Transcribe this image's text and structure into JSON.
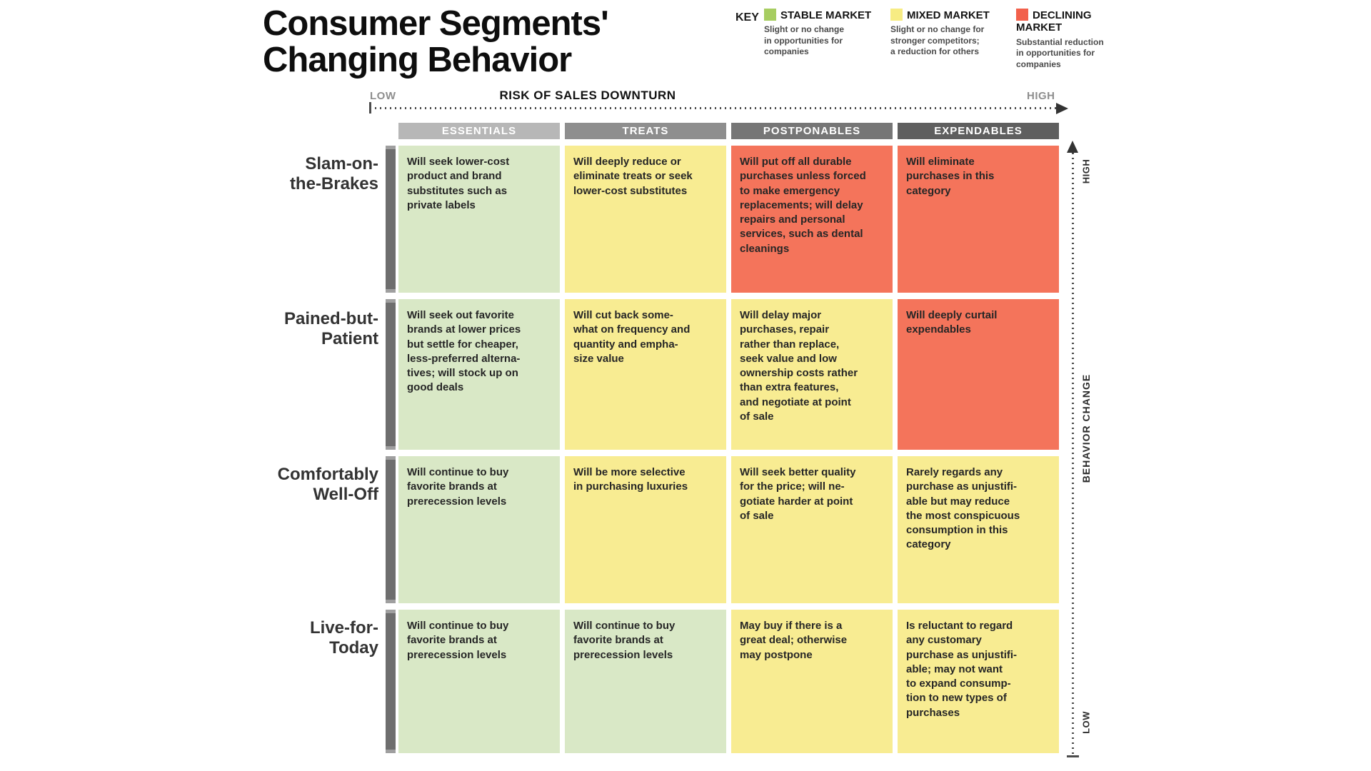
{
  "title": "Consumer Segments'\nChanging Behavior",
  "key": {
    "label": "KEY",
    "items": [
      {
        "name": "STABLE MARKET",
        "description": "Slight or no change\nin opportunities for\ncompanies",
        "color": "#a7cd61"
      },
      {
        "name": "MIXED MARKET",
        "description": "Slight or no change for\nstronger competitors;\na reduction for others",
        "color": "#f7ec83"
      },
      {
        "name": "DECLINING MARKET",
        "description": "Substantial reduction\nin opportunities for\ncompanies",
        "color": "#f2604b"
      }
    ]
  },
  "x_axis": {
    "low": "LOW",
    "title": "RISK OF SALES DOWNTURN",
    "high": "HIGH"
  },
  "y_axis": {
    "high": "HIGH",
    "title": "BEHAVIOR CHANGE",
    "low": "LOW"
  },
  "columns": [
    "ESSENTIALS",
    "TREATS",
    "POSTPONABLES",
    "EXPENDABLES"
  ],
  "colors": {
    "stable_cell": "#d9e8c6",
    "mixed_cell": "#f8ec92",
    "declining_cell": "#f4745b",
    "header_grays": [
      "#b7b7b7",
      "#8e8e8e",
      "#767676",
      "#5f5f5f"
    ]
  },
  "rows": [
    {
      "label": "Slam-on-\nthe-Brakes",
      "cells": [
        {
          "market": "stable",
          "text": "Will seek lower-cost\nproduct and brand\nsubstitutes such as\nprivate labels"
        },
        {
          "market": "mixed",
          "text": "Will deeply reduce or\neliminate treats or seek\nlower-cost substitutes"
        },
        {
          "market": "declining",
          "text": "Will put off all durable\npurchases unless forced\nto make emergency\nreplacements; will delay\nrepairs and personal\nservices, such as dental\ncleanings"
        },
        {
          "market": "declining",
          "text": "Will eliminate\npurchases in this\ncategory"
        }
      ]
    },
    {
      "label": "Pained-but-\nPatient",
      "cells": [
        {
          "market": "stable",
          "text": "Will seek out favorite\nbrands at lower prices\nbut settle for cheaper,\nless-preferred alterna-\ntives; will stock up on\ngood deals"
        },
        {
          "market": "mixed",
          "text": "Will cut back some-\nwhat on frequency and\nquantity and empha-\nsize value"
        },
        {
          "market": "mixed",
          "text": "Will delay major\npurchases, repair\nrather than replace,\nseek value and low\nownership costs rather\nthan extra features,\nand negotiate at point\nof sale"
        },
        {
          "market": "declining",
          "text": "Will deeply curtail\nexpendables"
        }
      ]
    },
    {
      "label": "Comfortably\nWell-Off",
      "cells": [
        {
          "market": "stable",
          "text": "Will continue to buy\nfavorite brands at\nprerecession levels"
        },
        {
          "market": "mixed",
          "text": "Will be more selective\nin purchasing luxuries"
        },
        {
          "market": "mixed",
          "text": "Will seek better quality\nfor the price; will ne-\ngotiate harder at point\nof sale"
        },
        {
          "market": "mixed",
          "text": "Rarely regards any\npurchase as unjustifi-\nable but may reduce\nthe most conspicuous\nconsumption in this\ncategory"
        }
      ]
    },
    {
      "label": "Live-for-\nToday",
      "cells": [
        {
          "market": "stable",
          "text": "Will continue to buy\nfavorite brands at\nprerecession levels"
        },
        {
          "market": "stable",
          "text": "Will continue to buy\nfavorite brands at\nprerecession levels"
        },
        {
          "market": "mixed",
          "text": "May buy if there is a\ngreat deal; otherwise\nmay postpone"
        },
        {
          "market": "mixed",
          "text": "Is reluctant to regard\nany customary\npurchase as unjustifi-\nable; may not want\nto expand consump-\ntion to new types of\npurchases"
        }
      ]
    }
  ]
}
